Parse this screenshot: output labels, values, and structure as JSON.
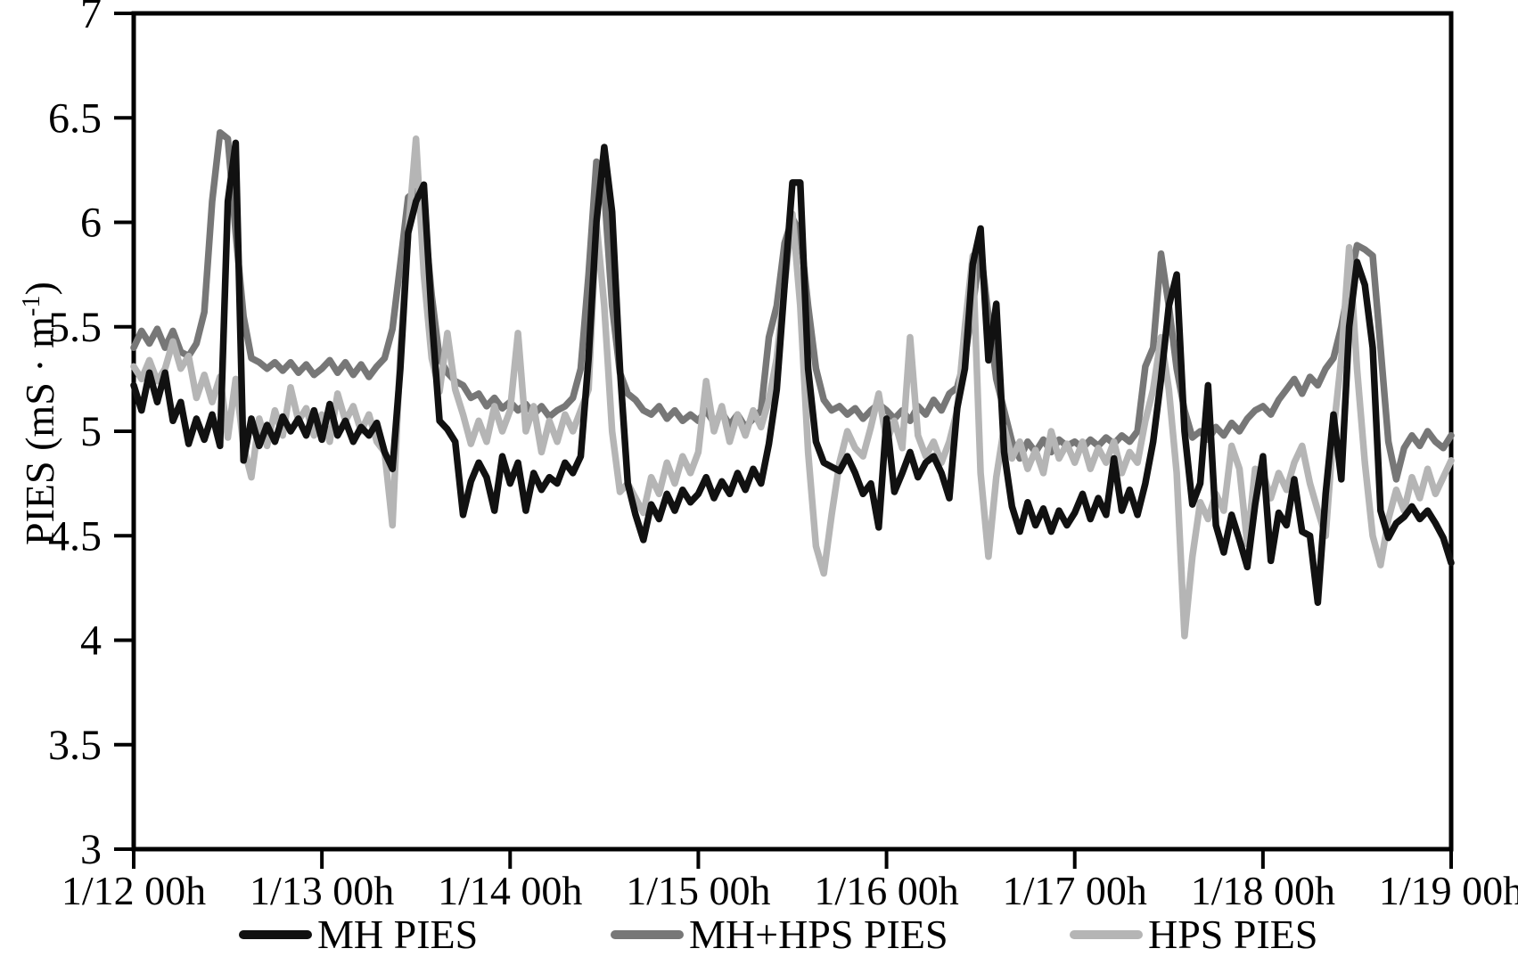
{
  "chart_data": {
    "type": "line",
    "title": "",
    "xlabel": "",
    "ylabel_main": "PIES (mS · m",
    "ylabel_sup": "-1",
    "ylabel_close": ")",
    "ylim": [
      3,
      7
    ],
    "x_hours": [
      0,
      168
    ],
    "grid": false,
    "legend_position": "bottom",
    "y_ticks": [
      7,
      6.5,
      6,
      5.5,
      5,
      4.5,
      4,
      3.5,
      3
    ],
    "y_tick_labels": [
      "7",
      "6.5",
      "6",
      "5.5",
      "5",
      "4.5",
      "4",
      "3.5",
      "3"
    ],
    "x_tick_hours": [
      0,
      24,
      48,
      72,
      96,
      120,
      144,
      168
    ],
    "x_tick_labels": [
      "1/12 00h",
      "1/13 00h",
      "1/14 00h",
      "1/15 00h",
      "1/16 00h",
      "1/17 00h",
      "1/18 00h",
      "1/19 00h"
    ],
    "axis_color": "#000000",
    "series": [
      {
        "name": "MH PIES",
        "color": "#111111",
        "values": [
          5.22,
          5.1,
          5.28,
          5.14,
          5.28,
          5.05,
          5.14,
          4.94,
          5.06,
          4.96,
          5.08,
          4.93,
          6.1,
          6.38,
          4.86,
          5.06,
          4.93,
          5.03,
          4.95,
          5.07,
          5.0,
          5.06,
          4.98,
          5.1,
          4.96,
          5.13,
          4.98,
          5.05,
          4.95,
          5.02,
          4.98,
          5.04,
          4.9,
          4.82,
          5.3,
          5.95,
          6.1,
          6.18,
          5.55,
          5.05,
          5.01,
          4.95,
          4.6,
          4.76,
          4.85,
          4.78,
          4.62,
          4.88,
          4.75,
          4.85,
          4.62,
          4.8,
          4.72,
          4.78,
          4.75,
          4.85,
          4.8,
          4.88,
          5.35,
          6.0,
          6.36,
          6.05,
          5.3,
          4.75,
          4.6,
          4.48,
          4.65,
          4.58,
          4.7,
          4.62,
          4.72,
          4.66,
          4.7,
          4.78,
          4.68,
          4.76,
          4.7,
          4.8,
          4.72,
          4.82,
          4.75,
          4.94,
          5.2,
          5.7,
          6.19,
          6.19,
          5.3,
          4.95,
          4.85,
          4.83,
          4.81,
          4.88,
          4.8,
          4.7,
          4.75,
          4.54,
          5.06,
          4.71,
          4.8,
          4.9,
          4.78,
          4.85,
          4.88,
          4.8,
          4.68,
          5.11,
          5.3,
          5.8,
          5.97,
          5.34,
          5.61,
          4.9,
          4.64,
          4.52,
          4.66,
          4.55,
          4.63,
          4.52,
          4.62,
          4.55,
          4.61,
          4.7,
          4.58,
          4.68,
          4.6,
          4.87,
          4.62,
          4.72,
          4.6,
          4.75,
          4.95,
          5.25,
          5.6,
          5.75,
          5.0,
          4.65,
          4.75,
          5.22,
          4.55,
          4.42,
          4.6,
          4.48,
          4.35,
          4.65,
          4.88,
          4.38,
          4.61,
          4.55,
          4.77,
          4.52,
          4.5,
          4.18,
          4.7,
          5.08,
          4.77,
          5.5,
          5.81,
          5.7,
          5.4,
          4.62,
          4.49,
          4.56,
          4.59,
          4.64,
          4.58,
          4.62,
          4.56,
          4.49,
          4.37
        ]
      },
      {
        "name": "MH+HPS PIES",
        "color": "#777777",
        "values": [
          5.4,
          5.48,
          5.42,
          5.49,
          5.4,
          5.48,
          5.38,
          5.36,
          5.42,
          5.57,
          6.1,
          6.43,
          6.4,
          5.95,
          5.55,
          5.35,
          5.33,
          5.3,
          5.33,
          5.29,
          5.33,
          5.28,
          5.32,
          5.27,
          5.3,
          5.34,
          5.28,
          5.33,
          5.27,
          5.32,
          5.26,
          5.31,
          5.35,
          5.49,
          5.8,
          6.12,
          6.15,
          6.05,
          5.65,
          5.35,
          5.28,
          5.24,
          5.22,
          5.16,
          5.18,
          5.12,
          5.16,
          5.11,
          5.14,
          5.1,
          5.13,
          5.08,
          5.12,
          5.07,
          5.1,
          5.12,
          5.16,
          5.3,
          5.75,
          6.29,
          6.15,
          5.6,
          5.28,
          5.18,
          5.15,
          5.1,
          5.08,
          5.12,
          5.06,
          5.1,
          5.05,
          5.08,
          5.05,
          5.1,
          5.04,
          5.09,
          5.03,
          5.08,
          5.02,
          5.06,
          5.1,
          5.45,
          5.6,
          5.9,
          6.02,
          5.95,
          5.6,
          5.3,
          5.15,
          5.1,
          5.12,
          5.08,
          5.11,
          5.06,
          5.1,
          5.13,
          5.1,
          5.06,
          5.1,
          5.05,
          5.12,
          5.08,
          5.15,
          5.1,
          5.18,
          5.21,
          5.35,
          5.6,
          5.87,
          5.55,
          5.25,
          5.1,
          4.95,
          4.87,
          4.95,
          4.9,
          4.96,
          4.9,
          4.96,
          4.93,
          4.95,
          4.92,
          4.96,
          4.93,
          4.97,
          4.94,
          4.98,
          4.95,
          5.0,
          5.31,
          5.4,
          5.85,
          5.6,
          5.3,
          5.1,
          4.97,
          5.0,
          4.96,
          5.02,
          4.98,
          5.04,
          5.0,
          5.06,
          5.1,
          5.12,
          5.08,
          5.15,
          5.2,
          5.25,
          5.18,
          5.26,
          5.22,
          5.3,
          5.35,
          5.5,
          5.7,
          5.89,
          5.87,
          5.84,
          5.4,
          4.95,
          4.77,
          4.92,
          4.98,
          4.93,
          5.0,
          4.95,
          4.92,
          4.98
        ]
      },
      {
        "name": "HPS PIES",
        "color": "#b5b5b5",
        "values": [
          5.31,
          5.25,
          5.34,
          5.24,
          5.3,
          5.43,
          5.3,
          5.36,
          5.16,
          5.27,
          5.14,
          5.26,
          4.97,
          5.25,
          4.93,
          4.78,
          5.06,
          4.93,
          5.1,
          4.98,
          5.21,
          5.05,
          5.11,
          4.98,
          5.08,
          4.95,
          5.18,
          5.05,
          5.12,
          5.0,
          5.08,
          4.95,
          4.9,
          4.55,
          5.37,
          5.95,
          6.4,
          5.75,
          5.35,
          5.19,
          5.47,
          5.2,
          5.08,
          4.94,
          5.05,
          4.95,
          5.12,
          5.0,
          5.1,
          5.47,
          5.0,
          5.12,
          4.9,
          5.05,
          4.95,
          5.08,
          5.0,
          5.1,
          5.2,
          6.0,
          5.6,
          5.0,
          4.71,
          4.75,
          4.68,
          4.61,
          4.78,
          4.7,
          4.85,
          4.75,
          4.88,
          4.8,
          4.9,
          5.24,
          5.0,
          5.12,
          4.95,
          5.08,
          4.98,
          5.1,
          5.02,
          5.15,
          5.35,
          5.7,
          6.04,
          5.6,
          4.9,
          4.45,
          4.32,
          4.6,
          4.85,
          5.0,
          4.92,
          4.88,
          5.02,
          5.18,
          4.95,
          5.05,
          4.92,
          5.45,
          4.98,
          4.88,
          4.95,
          4.85,
          4.95,
          5.1,
          5.5,
          5.84,
          4.8,
          4.4,
          4.78,
          5.02,
          4.87,
          4.95,
          4.82,
          4.91,
          4.8,
          5.0,
          4.87,
          4.94,
          4.85,
          4.95,
          4.82,
          4.92,
          4.85,
          4.95,
          4.8,
          4.9,
          4.85,
          5.05,
          5.2,
          5.45,
          5.2,
          4.8,
          4.02,
          4.4,
          4.66,
          4.58,
          4.7,
          4.62,
          4.93,
          4.82,
          4.46,
          4.82,
          4.8,
          4.68,
          4.8,
          4.72,
          4.85,
          4.93,
          4.75,
          4.62,
          4.5,
          5.0,
          5.35,
          5.88,
          5.3,
          4.85,
          4.5,
          4.36,
          4.58,
          4.72,
          4.62,
          4.78,
          4.68,
          4.82,
          4.7,
          4.78,
          4.86
        ]
      }
    ]
  }
}
